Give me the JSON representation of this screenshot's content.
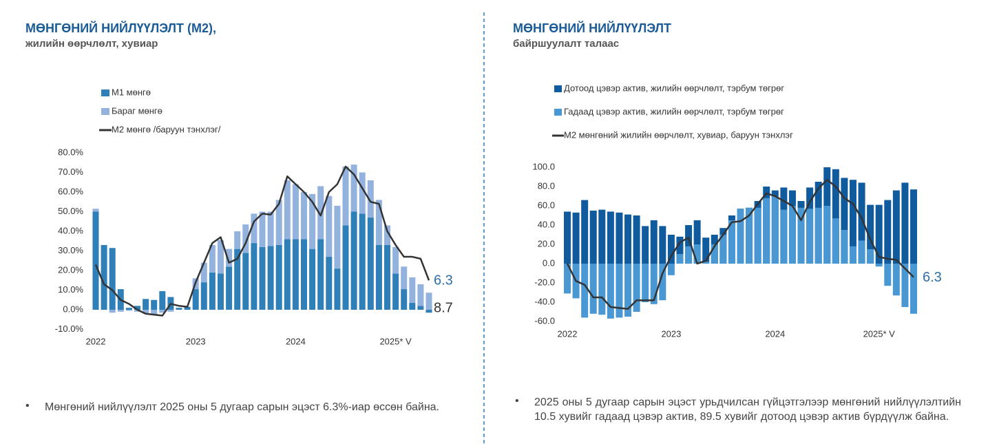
{
  "chart_data": [
    {
      "type": "bar",
      "stacked": true,
      "title": "МӨНГӨНИЙ НИЙЛҮҮЛЭЛТ (М2),",
      "subtitle": "жилийн өөрчлөлт, хувиар",
      "categories": [
        "2022",
        null,
        null,
        null,
        null,
        null,
        null,
        null,
        null,
        null,
        null,
        null,
        "2023",
        null,
        null,
        null,
        null,
        null,
        null,
        null,
        null,
        null,
        null,
        null,
        "2024",
        null,
        null,
        null,
        null,
        null,
        null,
        null,
        null,
        null,
        null,
        null,
        "2025* V",
        null,
        null,
        null,
        null
      ],
      "series": [
        {
          "name": "М1 мөнгө",
          "type": "bar",
          "color": "#2f80b8",
          "values": [
            50,
            33,
            31.5,
            10.5,
            1,
            2,
            5.5,
            5,
            9.5,
            6.5,
            1,
            1.5,
            10.5,
            14,
            19,
            18.5,
            22,
            31,
            29,
            34,
            32,
            32.5,
            33,
            36,
            36,
            36,
            31,
            36,
            27,
            21,
            43,
            50,
            49,
            47,
            33,
            33,
            18.5,
            10.5,
            3.5,
            2,
            -1.5
          ]
        },
        {
          "name": "Бараг мөнгө",
          "type": "bar",
          "color": "#93b2de",
          "values": [
            1.5,
            0,
            -1.5,
            -1,
            -0.5,
            -1,
            -2,
            -2.5,
            -1.5,
            -1,
            0,
            0,
            5.5,
            10,
            14,
            17,
            9,
            9,
            14.5,
            15,
            18,
            17.5,
            23,
            30,
            28,
            24,
            28,
            27,
            31,
            32,
            30,
            24,
            21,
            19,
            23,
            10,
            13.5,
            11.5,
            13,
            11,
            8.7
          ]
        },
        {
          "name": "М2 мөнгө /баруун тэнхлэг/",
          "type": "line",
          "color": "#333333",
          "values": [
            23,
            13,
            10,
            5,
            3,
            0,
            -2,
            -2.5,
            -3,
            3,
            2,
            1.5,
            14,
            24,
            34,
            37,
            24,
            26,
            34,
            45,
            49,
            48.5,
            54,
            68,
            64,
            60,
            55,
            48,
            60,
            64,
            73,
            69,
            62,
            55,
            54,
            40,
            33,
            27,
            27,
            26,
            15
          ]
        }
      ],
      "ylim": [
        -10,
        80
      ],
      "yticks": [
        {
          "value": -10,
          "label": "-10.0%"
        },
        {
          "value": 0,
          "label": "0.0%"
        },
        {
          "value": 10,
          "label": "10.0%"
        },
        {
          "value": 20,
          "label": "20.0%"
        },
        {
          "value": 30,
          "label": "30.0%"
        },
        {
          "value": 40,
          "label": "40.0%"
        },
        {
          "value": 50,
          "label": "50.0%"
        },
        {
          "value": 60,
          "label": "60.0%"
        },
        {
          "value": 70,
          "label": "70.0%"
        },
        {
          "value": 80,
          "label": "80.0%"
        }
      ],
      "annotations": [
        "6.3",
        "8.7"
      ],
      "note": "Мөнгөний нийлүүлэлт 2025 оны 5 дугаар сарын эцэст 6.3%-иар өссөн байна."
    },
    {
      "type": "bar",
      "stacked": false,
      "title": "МӨНГӨНИЙ НИЙЛҮҮЛЭЛТ",
      "subtitle": "байршуулалт талаас",
      "categories": [
        "2022",
        null,
        null,
        null,
        null,
        null,
        null,
        null,
        null,
        null,
        null,
        null,
        "2023",
        null,
        null,
        null,
        null,
        null,
        null,
        null,
        null,
        null,
        null,
        null,
        "2024",
        null,
        null,
        null,
        null,
        null,
        null,
        null,
        null,
        null,
        null,
        null,
        "2025* V",
        null,
        null,
        null,
        null
      ],
      "series": [
        {
          "name": "Дотоод цэвэр актив, жилийн өөрчлөлт, тэрбум төгрөг",
          "type": "bar",
          "color": "#105b9e",
          "values": [
            54,
            53,
            66,
            55,
            56,
            54,
            53,
            51,
            50,
            39,
            45,
            39,
            30,
            28,
            40,
            45,
            27,
            30,
            37,
            50,
            57,
            58,
            65,
            80,
            76,
            79,
            76,
            65,
            79,
            85,
            100,
            98,
            89,
            87,
            84,
            61,
            61,
            66,
            76,
            84,
            77
          ]
        },
        {
          "name": "Гадаад цэвэр актив, жилийн өөрчлөлт, тэрбум төгрөг",
          "type": "bar",
          "color": "#4a98d3",
          "values": [
            -31,
            -36,
            -56,
            -52,
            -53,
            -57,
            -56,
            -55,
            -50,
            -40,
            -42,
            -38,
            -12,
            10,
            18,
            20,
            2,
            20,
            30,
            45,
            57,
            58,
            58,
            68,
            70,
            56,
            60,
            58,
            57,
            58,
            60,
            47,
            35,
            18,
            24,
            15,
            -3,
            -23,
            -33,
            -45,
            -52
          ]
        },
        {
          "name": "М2 мөнгөний жилийн өөрчлөлт, хувиар, баруун тэнхлэг",
          "type": "line",
          "color": "#333333",
          "values": [
            0,
            -18,
            -22,
            -35,
            -35,
            -45,
            -46,
            -47,
            -38,
            -38,
            -38,
            -10,
            8,
            22,
            27,
            0,
            3,
            18,
            30,
            43,
            44,
            50,
            62,
            73,
            70,
            65,
            60,
            45,
            64,
            78,
            87,
            80,
            68,
            62,
            47,
            25,
            7,
            5,
            4,
            -5,
            -14
          ]
        }
      ],
      "ylim": [
        -60,
        100
      ],
      "yticks": [
        {
          "value": -60,
          "label": "-60.0"
        },
        {
          "value": -40,
          "label": "-40.0"
        },
        {
          "value": -20,
          "label": "-20.0"
        },
        {
          "value": 0,
          "label": "0.0"
        },
        {
          "value": 20,
          "label": "20.0"
        },
        {
          "value": 40,
          "label": "40.0"
        },
        {
          "value": 60,
          "label": "60.0"
        },
        {
          "value": 80,
          "label": "80.0"
        },
        {
          "value": 100,
          "label": "100.0"
        }
      ],
      "annotations": [
        "6.3"
      ],
      "note": "2025 оны 5 дугаар сарын эцэст урьдчилсан гүйцэтгэлээр мөнгөний нийлүүлэлтийн 10.5 хувийг гадаад цэвэр актив, 89.5 хувийг дотоод цэвэр актив бүрдүүлж байна."
    }
  ]
}
